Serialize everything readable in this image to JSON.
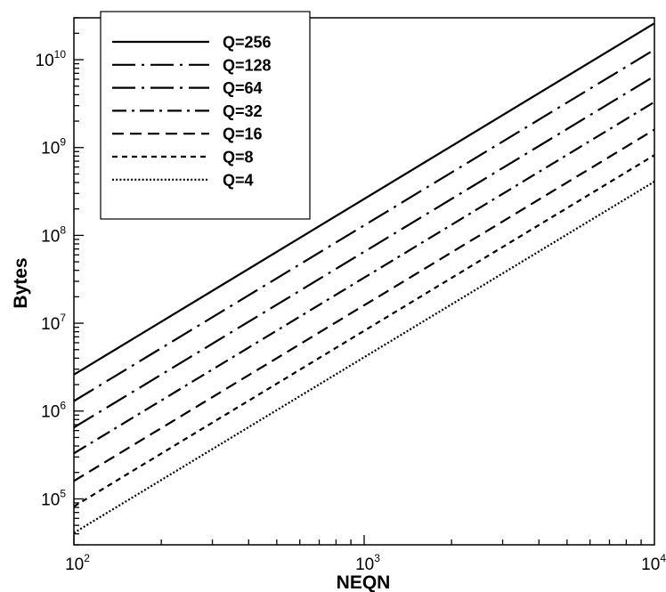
{
  "chart_data": {
    "type": "line",
    "title": "",
    "xlabel": "NEQN",
    "ylabel": "Bytes",
    "xscale": "log",
    "yscale": "log",
    "xlim": [
      100,
      10000
    ],
    "ylim": [
      30000,
      30000000000
    ],
    "grid": false,
    "legend_position": "top-left",
    "x_ticks": [
      {
        "value": 100,
        "base": "10",
        "exp": "2"
      },
      {
        "value": 1000,
        "base": "10",
        "exp": "3"
      },
      {
        "value": 10000,
        "base": "10",
        "exp": "4"
      }
    ],
    "y_ticks": [
      {
        "value": 100000,
        "base": "10",
        "exp": "5"
      },
      {
        "value": 1000000,
        "base": "10",
        "exp": "6"
      },
      {
        "value": 10000000,
        "base": "10",
        "exp": "7"
      },
      {
        "value": 100000000,
        "base": "10",
        "exp": "8"
      },
      {
        "value": 1000000000,
        "base": "10",
        "exp": "9"
      },
      {
        "value": 10000000000,
        "base": "10",
        "exp": "10"
      }
    ],
    "series": [
      {
        "name": "Q=256",
        "dash": "solid",
        "x": [
          100,
          10000
        ],
        "y": [
          2600000,
          26000000000
        ]
      },
      {
        "name": "Q=128",
        "dash": "long-dash-dot",
        "x": [
          100,
          10000
        ],
        "y": [
          1300000,
          13000000000
        ]
      },
      {
        "name": "Q=64",
        "dash": "long-dash-dot",
        "x": [
          100,
          10000
        ],
        "y": [
          650000,
          6500000000
        ]
      },
      {
        "name": "Q=32",
        "dash": "dash-dot",
        "x": [
          100,
          10000
        ],
        "y": [
          330000,
          3300000000
        ]
      },
      {
        "name": "Q=16",
        "dash": "dash",
        "x": [
          100,
          10000
        ],
        "y": [
          160000,
          1600000000
        ]
      },
      {
        "name": "Q=8",
        "dash": "short-dash",
        "x": [
          100,
          10000
        ],
        "y": [
          82000,
          820000000
        ]
      },
      {
        "name": "Q=4",
        "dash": "dotted",
        "x": [
          100,
          10000
        ],
        "y": [
          41000,
          410000000
        ]
      }
    ]
  }
}
